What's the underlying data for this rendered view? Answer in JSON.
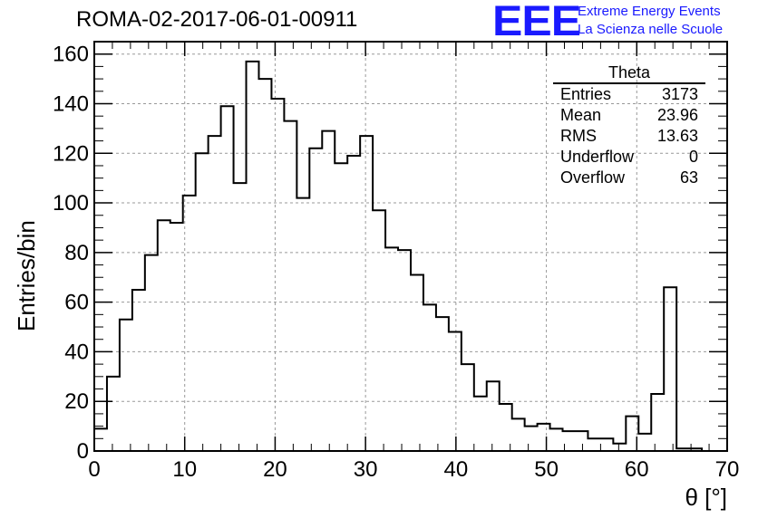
{
  "title": "ROMA-02-2017-06-01-00911",
  "logo": {
    "mark": "EEE",
    "line1": "Extreme Energy Events",
    "line2": "La Scienza nelle Scuole",
    "color": "#1a1aff"
  },
  "stats": {
    "name": "Theta",
    "rows": [
      {
        "label": "Entries",
        "value": "3173"
      },
      {
        "label": "Mean",
        "value": "23.96"
      },
      {
        "label": "RMS",
        "value": "13.63"
      },
      {
        "label": "Underflow",
        "value": "0"
      },
      {
        "label": "Overflow",
        "value": "63"
      }
    ]
  },
  "chart_data": {
    "type": "bar",
    "xlabel": "θ [°]",
    "ylabel": "Entries/bin",
    "xlim": [
      0,
      70
    ],
    "ylim": [
      0,
      165
    ],
    "x_ticks": [
      0,
      10,
      20,
      30,
      40,
      50,
      60,
      70
    ],
    "y_ticks": [
      0,
      20,
      40,
      60,
      80,
      100,
      120,
      140,
      160
    ],
    "grid": true,
    "bin_width": 1.4,
    "bin_edges_start": 0,
    "values": [
      9,
      30,
      53,
      65,
      79,
      93,
      92,
      103,
      120,
      127,
      139,
      108,
      157,
      150,
      142,
      133,
      102,
      122,
      129,
      116,
      119,
      127,
      97,
      82,
      81,
      71,
      59,
      54,
      48,
      35,
      22,
      28,
      19,
      13,
      10,
      11,
      9,
      8,
      8,
      5,
      5,
      3,
      14,
      7,
      23,
      66,
      1,
      1
    ]
  }
}
